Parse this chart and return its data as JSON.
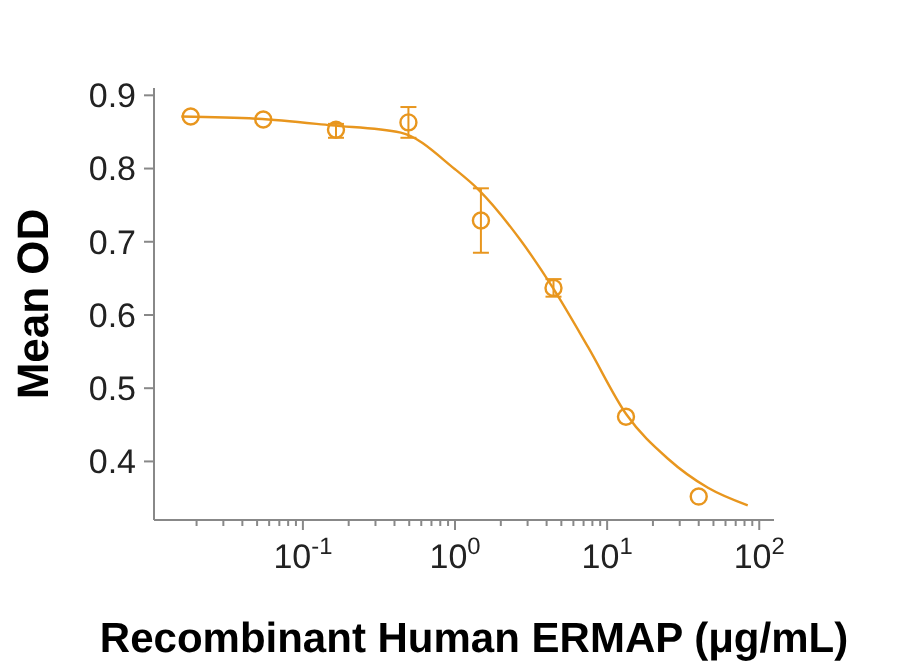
{
  "chart_data": {
    "type": "scatter",
    "xlabel": "Recombinant Human ERMAP (μg/mL)",
    "ylabel": "Mean OD",
    "log": "x",
    "xlim": [
      0.0105,
      125
    ],
    "ylim": [
      0.32,
      0.91
    ],
    "xticks": [
      {
        "value": 0.02,
        "label": null
      },
      {
        "value": 0.03,
        "label": null
      },
      {
        "value": 0.04,
        "label": null
      },
      {
        "value": 0.05,
        "label": null
      },
      {
        "value": 0.06,
        "label": null
      },
      {
        "value": 0.07,
        "label": null
      },
      {
        "value": 0.08,
        "label": null
      },
      {
        "value": 0.09,
        "label": null
      },
      {
        "value": 0.1,
        "label": "10$^{-1}$"
      },
      {
        "value": 0.2,
        "label": null
      },
      {
        "value": 0.3,
        "label": null
      },
      {
        "value": 0.4,
        "label": null
      },
      {
        "value": 0.5,
        "label": null
      },
      {
        "value": 0.6,
        "label": null
      },
      {
        "value": 0.7,
        "label": null
      },
      {
        "value": 0.8,
        "label": null
      },
      {
        "value": 0.9,
        "label": null
      },
      {
        "value": 1,
        "label": "10$^{0}$"
      },
      {
        "value": 2,
        "label": null
      },
      {
        "value": 3,
        "label": null
      },
      {
        "value": 4,
        "label": null
      },
      {
        "value": 5,
        "label": null
      },
      {
        "value": 6,
        "label": null
      },
      {
        "value": 7,
        "label": null
      },
      {
        "value": 8,
        "label": null
      },
      {
        "value": 9,
        "label": null
      },
      {
        "value": 10,
        "label": "10$^{1}$"
      },
      {
        "value": 20,
        "label": null
      },
      {
        "value": 30,
        "label": null
      },
      {
        "value": 40,
        "label": null
      },
      {
        "value": 50,
        "label": null
      },
      {
        "value": 60,
        "label": null
      },
      {
        "value": 70,
        "label": null
      },
      {
        "value": 80,
        "label": null
      },
      {
        "value": 90,
        "label": null
      },
      {
        "value": 100,
        "label": "10$^{2}$"
      }
    ],
    "yticks": [
      0.4,
      0.5,
      0.6,
      0.7,
      0.8,
      0.9
    ],
    "grid": false,
    "marker": "circle",
    "series": [
      {
        "color": "#e8961e",
        "x": [
          0.0183,
          0.0549,
          0.165,
          0.494,
          1.48,
          4.44,
          13.3,
          40
        ],
        "values": [
          0.871,
          0.867,
          0.853,
          0.863,
          0.729,
          0.637,
          0.461,
          0.352
        ],
        "errors": [
          null,
          null,
          [
            0.842,
            0.861
          ],
          [
            0.842,
            0.884
          ],
          [
            0.685,
            0.773
          ],
          [
            0.625,
            0.649
          ],
          null,
          null
        ]
      },
      {
        "type": "line",
        "color": "#e8961e",
        "marker": "none",
        "line_style": "solid",
        "x": [
          0.0159,
          0.05,
          0.154,
          0.44,
          1,
          1.43,
          2.7,
          4.37,
          7.5,
          13.4,
          25,
          46,
          84
        ],
        "values": [
          0.871,
          0.868,
          0.859,
          0.849,
          0.799,
          0.771,
          0.702,
          0.638,
          0.556,
          0.464,
          0.404,
          0.364,
          0.34
        ]
      }
    ]
  }
}
